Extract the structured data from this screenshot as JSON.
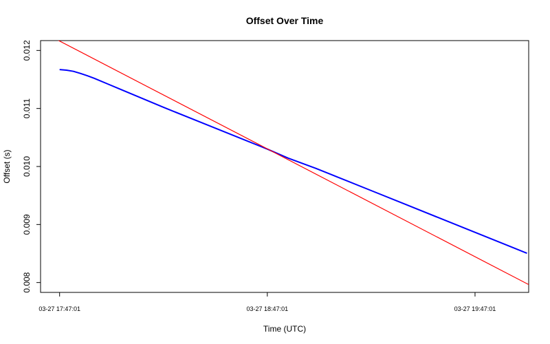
{
  "chart_data": {
    "type": "line",
    "title": "Offset Over Time",
    "xlabel": "Time (UTC)",
    "ylabel": "Offset (s)",
    "x_tick_labels": [
      "03-27 17:47:01",
      "03-27 18:47:01",
      "03-27 19:47:01"
    ],
    "x_ticks_minutes": [
      0,
      60,
      120
    ],
    "xlim_minutes": [
      -5.5,
      135.5
    ],
    "y_ticks": [
      0.008,
      0.009,
      0.01,
      0.011,
      0.012
    ],
    "y_tick_labels": [
      "0.008",
      "0.009",
      "0.010",
      "0.011",
      "0.012"
    ],
    "ylim": [
      0.00783,
      0.01217
    ],
    "grid": false,
    "series": [
      {
        "color": "#0000ff",
        "x_minutes": [
          0,
          2,
          4,
          6,
          8,
          10,
          14,
          18,
          24,
          30,
          40,
          50,
          60,
          66,
          74,
          80,
          90,
          100,
          110,
          120,
          130,
          135
        ],
        "values": [
          0.01167,
          0.01166,
          0.01164,
          0.011605,
          0.011565,
          0.01152,
          0.01142,
          0.01132,
          0.01117,
          0.01102,
          0.01078,
          0.01054,
          0.0103,
          0.010145,
          0.009968,
          0.009825,
          0.009585,
          0.009345,
          0.009105,
          0.008865,
          0.008625,
          0.008505
        ]
      },
      {
        "color": "#ff0000",
        "x_minutes": [
          -3,
          135.5
        ],
        "values": [
          0.012255,
          0.007965
        ]
      }
    ]
  }
}
